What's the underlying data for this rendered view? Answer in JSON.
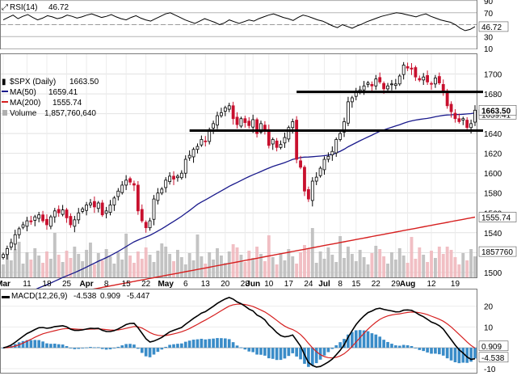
{
  "chart_data": [
    {
      "panel": "rsi",
      "type": "line",
      "title": "RSI(14)",
      "current_value": "46.72",
      "levels": [
        70,
        30
      ],
      "ylim": [
        10,
        90
      ],
      "y_ticks": [
        90,
        70,
        50,
        30,
        10
      ],
      "values": [
        58,
        62,
        66,
        60,
        64,
        67,
        62,
        58,
        61,
        65,
        63,
        60,
        62,
        66,
        64,
        61,
        63,
        66,
        68,
        65,
        62,
        64,
        67,
        63,
        60,
        58,
        62,
        65,
        61,
        58,
        56,
        60,
        64,
        68,
        70,
        66,
        62,
        58,
        55,
        52,
        56,
        60,
        57,
        54,
        50,
        53,
        58,
        55,
        52,
        55,
        58,
        56,
        60,
        63,
        66,
        68,
        65,
        62,
        60,
        57,
        62,
        66,
        64,
        61,
        58,
        56,
        52,
        48,
        45,
        50,
        47,
        44,
        48,
        51,
        55,
        58,
        61,
        64,
        66,
        68,
        70,
        69,
        67,
        65,
        63,
        66,
        68,
        64,
        61,
        58,
        56,
        54,
        50,
        44,
        40,
        42,
        46.72
      ]
    },
    {
      "panel": "price",
      "type": "candlestick",
      "symbol": "$SPX (Daily)",
      "last": "1663.50",
      "ylim": [
        1495,
        1720
      ],
      "y_ticks": [
        1700,
        1680,
        1660,
        1640,
        1620,
        1600,
        1580,
        1560,
        1540,
        1520,
        1500
      ],
      "x_ticks": [
        "Mar",
        "11",
        "18",
        "25",
        "Apr",
        "8",
        "15",
        "22",
        "May",
        "6",
        "13",
        "20",
        "28",
        "Jun",
        "10",
        "17",
        "24",
        "Jul",
        "8",
        "15",
        "22",
        "29",
        "Aug",
        "12",
        "19"
      ],
      "close": [
        1518,
        1524,
        1530,
        1538,
        1544,
        1548,
        1552,
        1551,
        1556,
        1558,
        1552,
        1548,
        1556,
        1562,
        1560,
        1563,
        1555,
        1548,
        1553,
        1560,
        1564,
        1568,
        1570,
        1566,
        1570,
        1558,
        1562,
        1568,
        1575,
        1582,
        1588,
        1593,
        1591,
        1588,
        1562,
        1552,
        1545,
        1552,
        1574,
        1580,
        1584,
        1593,
        1597,
        1594,
        1597,
        1600,
        1614,
        1618,
        1624,
        1627,
        1634,
        1632,
        1644,
        1650,
        1658,
        1661,
        1666,
        1668,
        1655,
        1649,
        1655,
        1651,
        1648,
        1654,
        1640,
        1650,
        1644,
        1628,
        1634,
        1626,
        1629,
        1636,
        1646,
        1652,
        1614,
        1606,
        1582,
        1574,
        1592,
        1596,
        1605,
        1614,
        1617,
        1622,
        1634,
        1640,
        1652,
        1672,
        1676,
        1683,
        1684,
        1688,
        1691,
        1688,
        1695,
        1692,
        1685,
        1688,
        1690,
        1690,
        1698,
        1709,
        1706,
        1705,
        1697,
        1694,
        1697,
        1692,
        1690,
        1696,
        1691,
        1683,
        1668,
        1662,
        1655,
        1652,
        1655,
        1646,
        1650,
        1663.5
      ],
      "series": [
        {
          "name": "MA(50)",
          "value": "1659.41",
          "color": "#1a1a8c"
        },
        {
          "name": "MA(200)",
          "value": "1555.74",
          "color": "#d62020"
        }
      ],
      "volume": {
        "name": "Volume",
        "value": "1,857,760,640"
      },
      "support_resistance": [
        1682,
        1643
      ],
      "price_tags": [
        "1663.50",
        "1659.41",
        "1555.74",
        "1857760"
      ]
    },
    {
      "panel": "macd",
      "type": "line",
      "title": "MACD(12,26,9)",
      "values_text": [
        "-4.538",
        "0.909",
        "-5.447"
      ],
      "ylim": [
        -12,
        28
      ],
      "y_ticks": [
        20,
        10,
        0,
        -10
      ],
      "right_tags": [
        "0.909",
        "-4.538"
      ]
    }
  ]
}
